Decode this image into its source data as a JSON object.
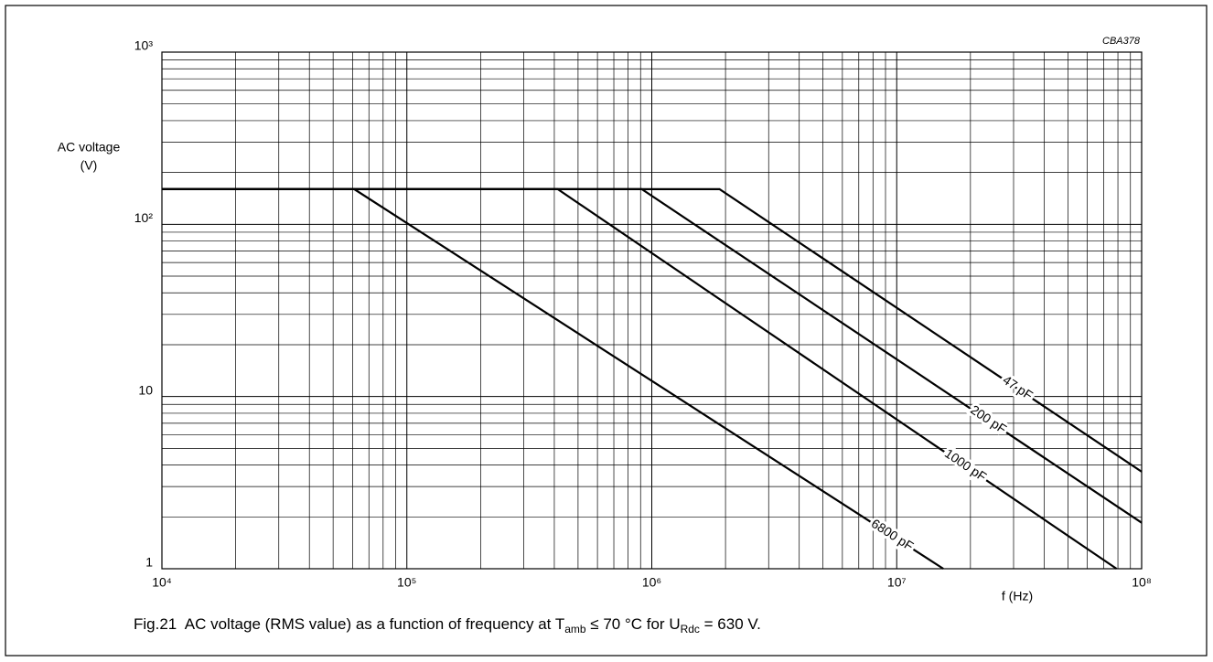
{
  "chart_data": {
    "type": "line",
    "annotation": "CBA378",
    "ylabel": [
      "AC voltage",
      "(V)"
    ],
    "xlabel": "f  (Hz)",
    "caption": [
      "Fig.21  AC voltage (RMS value) as a function of frequency at T",
      "amb",
      " ≤ 70 °C for U",
      "Rdc",
      " = 630 V."
    ],
    "xlog": true,
    "ylog": true,
    "grid": true,
    "minor_grid": true,
    "xlim": [
      10000,
      100000000
    ],
    "ylim": [
      1,
      1000
    ],
    "xticks": [
      {
        "value": 10000,
        "label": "10⁴"
      },
      {
        "value": 100000,
        "label": "10⁵"
      },
      {
        "value": 1000000,
        "label": "10⁶"
      },
      {
        "value": 10000000,
        "label": "10⁷"
      },
      {
        "value": 100000000,
        "label": "10⁸"
      }
    ],
    "yticks": [
      1,
      10,
      {
        "value": 100,
        "label": "10²"
      },
      {
        "value": 1000,
        "label": "10³"
      }
    ],
    "series": [
      {
        "name": "47 pF",
        "color": "#000000",
        "x": [
          10000,
          1890000,
          100000000
        ],
        "values": [
          160,
          160,
          3.66
        ]
      },
      {
        "name": "200 pF",
        "color": "#000000",
        "x": [
          10000,
          910000,
          100000000
        ],
        "values": [
          160,
          160,
          1.85
        ]
      },
      {
        "name": "1000 pF",
        "color": "#000000",
        "x": [
          10000,
          413000,
          79000000
        ],
        "values": [
          160,
          160,
          1
        ]
      },
      {
        "name": "6800 pF",
        "color": "#000000",
        "x": [
          10000,
          61000,
          15500000
        ],
        "values": [
          160,
          160,
          1
        ]
      }
    ]
  }
}
